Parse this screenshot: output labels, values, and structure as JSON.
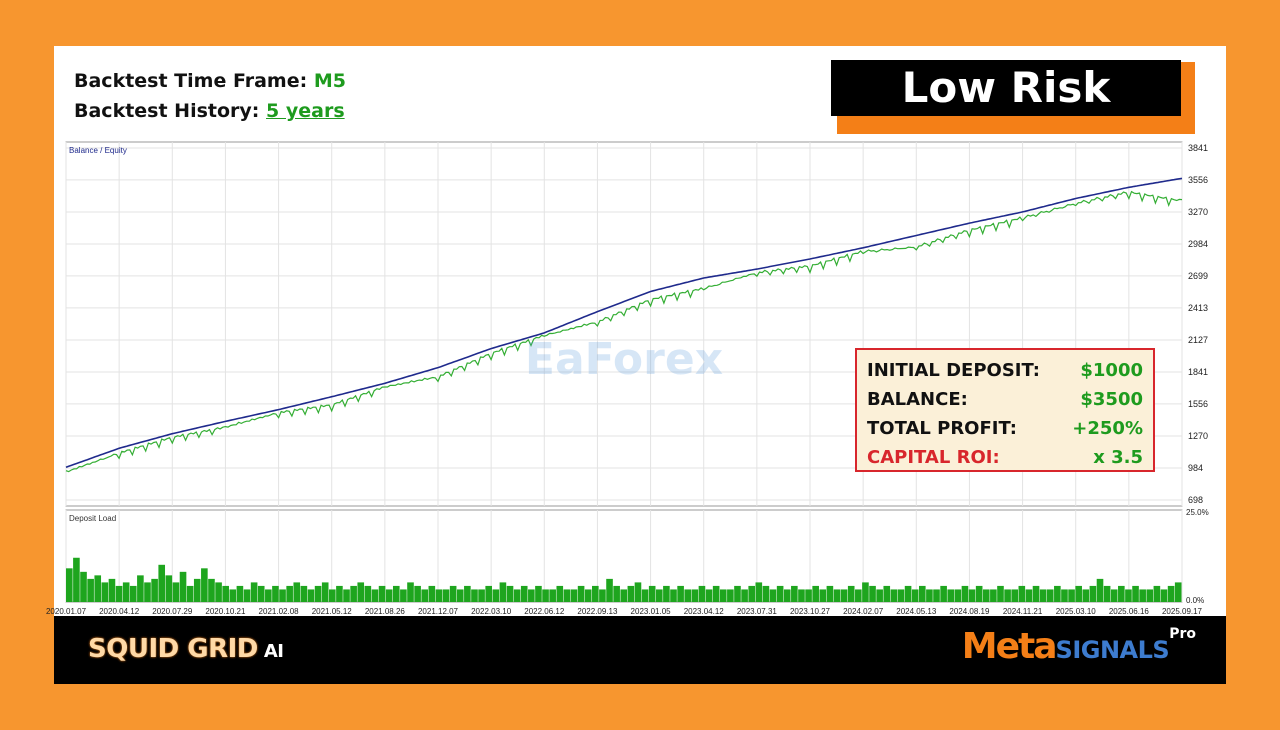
{
  "header": {
    "timeframe_label": "Backtest Time Frame:",
    "timeframe_value": "M5",
    "history_label": "Backtest History:",
    "history_value": "5 years",
    "risk_badge": "Low Risk"
  },
  "stats": [
    {
      "label": "INITIAL DEPOSIT:",
      "value": "$1000"
    },
    {
      "label": "BALANCE:",
      "value": "$3500"
    },
    {
      "label": "TOTAL PROFIT:",
      "value": "+250%"
    },
    {
      "label": "CAPITAL ROI:",
      "value": "x 3.5"
    }
  ],
  "footer": {
    "left_brand": "SQUID GRID",
    "left_brand_suffix": "AI",
    "right_brand_meta": "Meta",
    "right_brand_signals": "SIGNALS",
    "right_brand_pro": "Pro"
  },
  "watermark": "EaForex",
  "colors": {
    "background": "#f7962f",
    "balance_line": "#1f2a8c",
    "equity_line": "#1ea51e",
    "accent_orange": "#f47f17",
    "accent_red": "#d8262c"
  },
  "chart_data": [
    {
      "type": "line",
      "title": "Balance / Equity",
      "series": [
        {
          "name": "Balance",
          "color": "#1f2a8c",
          "x": [
            "2020.01.07",
            "2020.04.12",
            "2020.07.29",
            "2020.10.21",
            "2021.02.08",
            "2021.05.12",
            "2021.08.26",
            "2021.12.07",
            "2022.03.10",
            "2022.06.12",
            "2022.09.13",
            "2023.01.05",
            "2023.04.12",
            "2023.07.31",
            "2023.10.27",
            "2024.02.07",
            "2024.05.13",
            "2024.08.19",
            "2024.11.21",
            "2025.03.10",
            "2025.06.16",
            "2025.09.17"
          ],
          "values": [
            990,
            1160,
            1290,
            1400,
            1505,
            1620,
            1740,
            1880,
            2050,
            2190,
            2380,
            2560,
            2680,
            2760,
            2850,
            2950,
            3060,
            3170,
            3270,
            3390,
            3490,
            3570
          ]
        },
        {
          "name": "Equity",
          "color": "#1ea51e",
          "x": [
            "2020.01.07",
            "2020.04.12",
            "2020.07.29",
            "2020.10.21",
            "2021.02.08",
            "2021.05.12",
            "2021.08.26",
            "2021.12.07",
            "2022.03.10",
            "2022.06.12",
            "2022.09.13",
            "2023.01.05",
            "2023.04.12",
            "2023.07.31",
            "2023.10.27",
            "2024.02.07",
            "2024.05.13",
            "2024.08.19",
            "2024.11.21",
            "2025.03.10",
            "2025.06.16",
            "2025.09.17"
          ],
          "values": [
            960,
            1130,
            1270,
            1360,
            1490,
            1560,
            1720,
            1810,
            2020,
            2180,
            2300,
            2500,
            2600,
            2740,
            2800,
            2930,
            2970,
            3120,
            3230,
            3360,
            3460,
            3380
          ]
        }
      ],
      "y_ticks": [
        "3841",
        "3556",
        "3270",
        "2984",
        "2699",
        "2413",
        "2127",
        "1841",
        "1556",
        "1270",
        "984",
        "698"
      ],
      "ylim": [
        698,
        3841
      ],
      "grid": true,
      "legend": "top-left"
    },
    {
      "type": "bar",
      "title": "Deposit Load",
      "y_ticks": [
        "25.0%",
        "0.0%"
      ],
      "ylim": [
        0,
        25
      ],
      "x_ticks": [
        "2020.01.07",
        "2020.04.12",
        "2020.07.29",
        "2020.10.21",
        "2021.02.08",
        "2021.05.12",
        "2021.08.26",
        "2021.12.07",
        "2022.03.10",
        "2022.06.12",
        "2022.09.13",
        "2023.01.05",
        "2023.04.12",
        "2023.07.31",
        "2023.10.27",
        "2024.02.07",
        "2024.05.13",
        "2024.08.19",
        "2024.11.21",
        "2025.03.10",
        "2025.06.16",
        "2025.09.17"
      ],
      "values": [
        9,
        12,
        8,
        6,
        7,
        5,
        6,
        4,
        5,
        4,
        7,
        5,
        6,
        10,
        7,
        5,
        8,
        4,
        6,
        9,
        6,
        5,
        4,
        3,
        4,
        3,
        5,
        4,
        3,
        4,
        3,
        4,
        5,
        4,
        3,
        4,
        5,
        3,
        4,
        3,
        4,
        5,
        4,
        3,
        4,
        3,
        4,
        3,
        5,
        4,
        3,
        4,
        3,
        3,
        4,
        3,
        4,
        3,
        3,
        4,
        3,
        5,
        4,
        3,
        4,
        3,
        4,
        3,
        3,
        4,
        3,
        3,
        4,
        3,
        4,
        3,
        6,
        4,
        3,
        4,
        5,
        3,
        4,
        3,
        4,
        3,
        4,
        3,
        3,
        4,
        3,
        4,
        3,
        3,
        4,
        3,
        4,
        5,
        4,
        3,
        4,
        3,
        4,
        3,
        3,
        4,
        3,
        4,
        3,
        3,
        4,
        3,
        5,
        4,
        3,
        4,
        3,
        3,
        4,
        3,
        4,
        3,
        3,
        4,
        3,
        3,
        4,
        3,
        4,
        3,
        3,
        4,
        3,
        3,
        4,
        3,
        4,
        3,
        3,
        4,
        3,
        3,
        4,
        3,
        4,
        6,
        4,
        3,
        4,
        3,
        4,
        3,
        3,
        4,
        3,
        4,
        5
      ],
      "grid": true,
      "legend": "top-left"
    }
  ]
}
